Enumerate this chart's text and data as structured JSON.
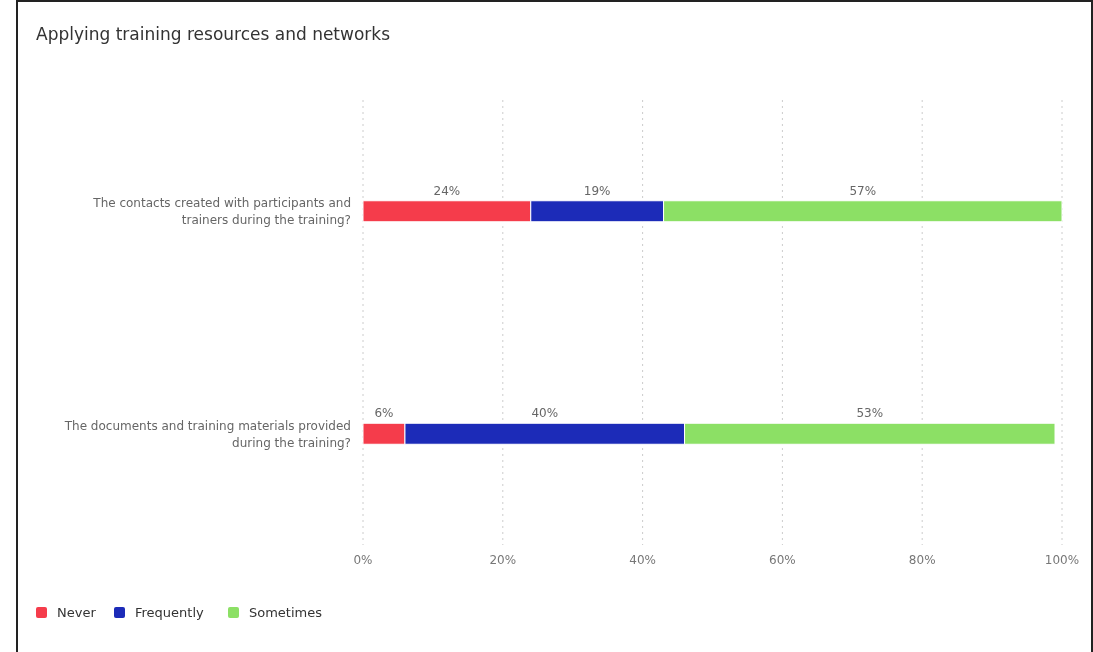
{
  "chart_data": {
    "type": "bar",
    "title": "Applying training resources and networks",
    "orientation": "horizontal",
    "stacked": true,
    "categories": [
      "The contacts created with participants and trainers during the training?",
      "The documents and training materials provided during the training?"
    ],
    "series": [
      {
        "name": "Never",
        "color": "#f53c4b",
        "values": [
          24,
          6
        ],
        "value_labels": [
          "24%",
          "6%"
        ]
      },
      {
        "name": "Frequently",
        "color": "#1c2bb8",
        "values": [
          19,
          40
        ],
        "value_labels": [
          "19%",
          "40%"
        ]
      },
      {
        "name": "Sometimes",
        "color": "#8ce065",
        "values": [
          57,
          53
        ],
        "value_labels": [
          "57%",
          "53%"
        ]
      }
    ],
    "xlim": [
      0,
      100
    ],
    "xticks": [
      {
        "value": 0,
        "label": "0%"
      },
      {
        "value": 20,
        "label": "20%"
      },
      {
        "value": 40,
        "label": "40%"
      },
      {
        "value": 60,
        "label": "60%"
      },
      {
        "value": 80,
        "label": "80%"
      },
      {
        "value": 100,
        "label": "100%"
      }
    ],
    "grid": "x",
    "legend": "bottom left"
  }
}
